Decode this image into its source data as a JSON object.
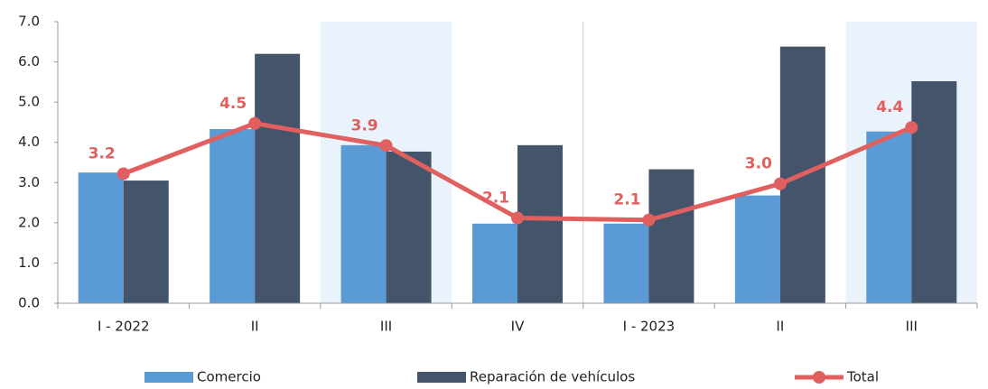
{
  "chart_data": {
    "type": "bar",
    "categories": [
      "I - 2022",
      "II",
      "III",
      "IV",
      "I - 2023",
      "II",
      "III"
    ],
    "series": [
      {
        "name": "Comercio",
        "type": "bar",
        "color": "#5b9bd5",
        "values": [
          3.25,
          4.33,
          3.93,
          1.98,
          1.98,
          2.68,
          4.27
        ]
      },
      {
        "name": "Reparación de vehículos",
        "type": "bar",
        "color": "#44546a",
        "values": [
          3.05,
          6.2,
          3.77,
          3.93,
          3.33,
          6.38,
          5.52
        ]
      },
      {
        "name": "Total",
        "type": "line",
        "color": "#e06060",
        "values": [
          3.22,
          4.47,
          3.92,
          2.12,
          2.07,
          2.97,
          4.37
        ],
        "value_labels": [
          "3.2",
          "4.5",
          "3.9",
          "2.1",
          "2.1",
          "3.0",
          "4.4"
        ]
      }
    ],
    "ylim": [
      0,
      7
    ],
    "yticks": [
      {
        "value": 0,
        "label": "0.0"
      },
      {
        "value": 1,
        "label": "1.0"
      },
      {
        "value": 2,
        "label": "2.0"
      },
      {
        "value": 3,
        "label": "3.0"
      },
      {
        "value": 4,
        "label": "4.0"
      },
      {
        "value": 5,
        "label": "5.0"
      },
      {
        "value": 6,
        "label": "6.0"
      },
      {
        "value": 7,
        "label": "7.0"
      }
    ],
    "shaded_categories": [
      2,
      6
    ],
    "legend": "bottom"
  }
}
